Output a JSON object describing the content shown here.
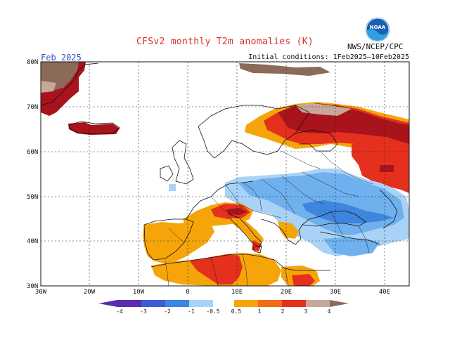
{
  "title": "CFSv2 monthly T2m anomalies (K)",
  "agency": "NWS/NCEP/CPC",
  "initial_conditions": "Initial conditions: 1Feb2025–10Feb2025",
  "month": "Feb 2025",
  "logo_text": "NOAA",
  "lat_labels": [
    "80N",
    "70N",
    "60N",
    "50N",
    "40N",
    "30N"
  ],
  "lon_labels": [
    "30W",
    "20W",
    "10W",
    "0",
    "10E",
    "20E",
    "30E",
    "40E"
  ],
  "colorbar_labels": [
    "-4",
    "-3",
    "-2",
    "-1",
    "-0.5",
    "0.5",
    "1",
    "2",
    "3",
    "4"
  ],
  "colors": {
    "c_m4": "#5b2bb0",
    "c_m3": "#3f5cd6",
    "c_m2": "#3d86dd",
    "c_m1": "#6fb0ee",
    "c_m05": "#a9d3f6",
    "c_p05": "#f5a50a",
    "c_p1": "#f36b16",
    "c_p2": "#e4301d",
    "c_p3": "#a8131c",
    "c_p4": "#8c6a5a",
    "c_p4b": "#c8a79a"
  }
}
